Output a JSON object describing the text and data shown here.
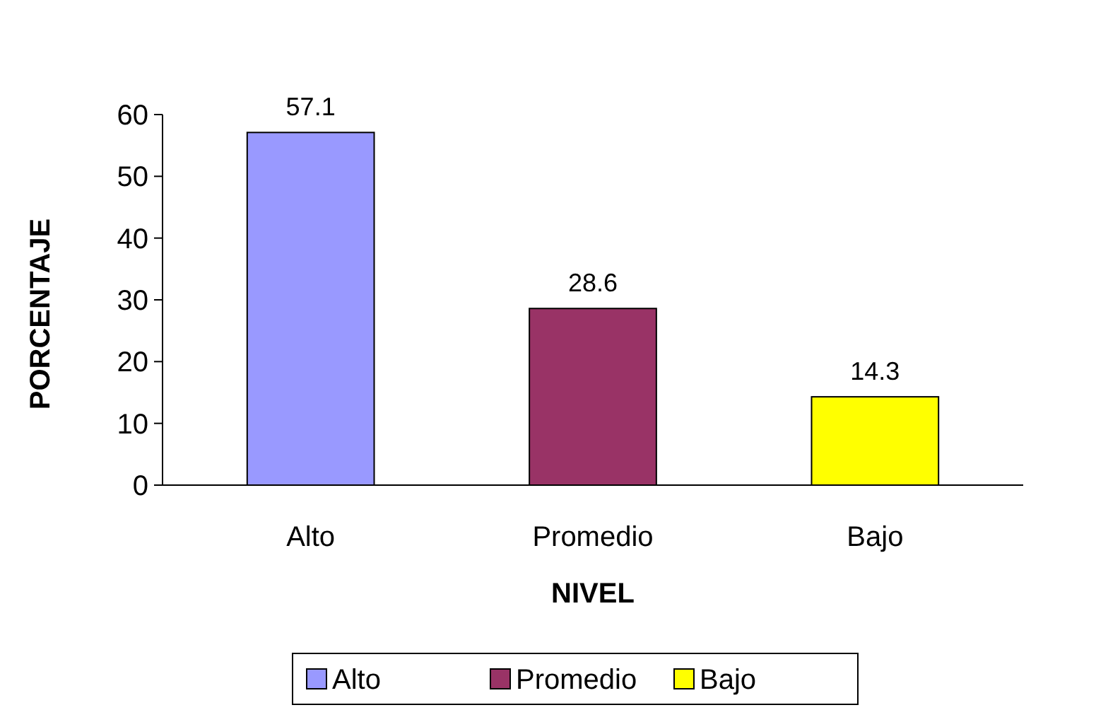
{
  "chart_data": {
    "type": "bar",
    "xlabel": "NIVEL",
    "ylabel": "PORCENTAJE",
    "categories": [
      "Alto",
      "Promedio",
      "Bajo"
    ],
    "series": [
      {
        "name": "Alto",
        "color": "#9999ff",
        "values": [
          57.1,
          null,
          null
        ]
      },
      {
        "name": "Promedio",
        "color": "#993366",
        "values": [
          null,
          28.6,
          null
        ]
      },
      {
        "name": "Bajo",
        "color": "#ffff00",
        "values": [
          null,
          null,
          14.3
        ]
      }
    ],
    "ylim": [
      0,
      60
    ],
    "yticks": [
      0,
      10,
      20,
      30,
      40,
      50,
      60
    ],
    "data_labels": true,
    "grid": false,
    "legend": "bottom"
  }
}
